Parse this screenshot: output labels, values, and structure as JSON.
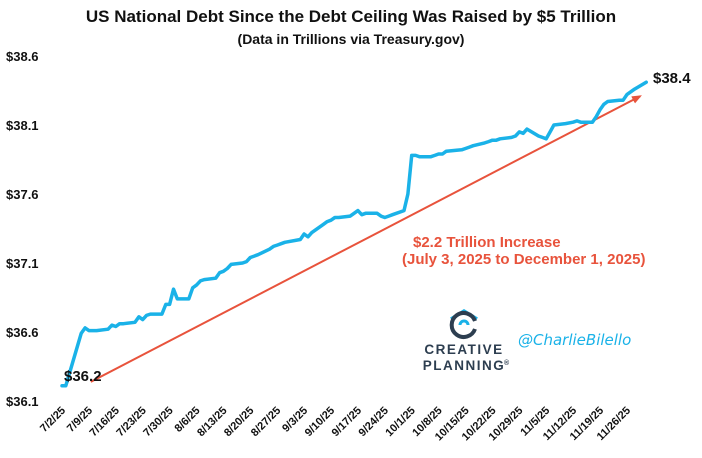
{
  "chart_data": {
    "type": "line",
    "title": "US National Debt Since the Debt Ceiling Was Raised by $5 Trillion",
    "subtitle": "(Data in Trillions via Treasury.gov)",
    "xlabel": "",
    "ylabel": "",
    "ylim": [
      36.1,
      38.6
    ],
    "yticks": [
      "$36.1",
      "$36.6",
      "$37.1",
      "$37.6",
      "$38.1",
      "$38.6"
    ],
    "ytick_values": [
      36.1,
      36.6,
      37.1,
      37.6,
      38.1,
      38.6
    ],
    "xlim": [
      "2025-07-02",
      "2025-12-02"
    ],
    "xticks": [
      "7/2/25",
      "7/9/25",
      "7/16/25",
      "7/23/25",
      "7/30/25",
      "8/6/25",
      "8/13/25",
      "8/20/25",
      "8/27/25",
      "9/3/25",
      "9/10/25",
      "9/17/25",
      "9/24/25",
      "10/1/25",
      "10/8/25",
      "10/15/25",
      "10/22/25",
      "10/29/25",
      "11/5/25",
      "11/12/25",
      "11/19/25",
      "11/26/25"
    ],
    "xtick_dates": [
      "2025-07-02",
      "2025-07-09",
      "2025-07-16",
      "2025-07-23",
      "2025-07-30",
      "2025-08-06",
      "2025-08-13",
      "2025-08-20",
      "2025-08-27",
      "2025-09-03",
      "2025-09-10",
      "2025-09-17",
      "2025-09-24",
      "2025-10-01",
      "2025-10-08",
      "2025-10-15",
      "2025-10-22",
      "2025-10-29",
      "2025-11-05",
      "2025-11-12",
      "2025-11-19",
      "2025-11-26"
    ],
    "grid": false,
    "series": [
      {
        "color": "#1ab2e8",
        "x": [
          "2025-07-02",
          "2025-07-03",
          "2025-07-07",
          "2025-07-08",
          "2025-07-09",
          "2025-07-10",
          "2025-07-11",
          "2025-07-14",
          "2025-07-15",
          "2025-07-16",
          "2025-07-17",
          "2025-07-18",
          "2025-07-21",
          "2025-07-22",
          "2025-07-23",
          "2025-07-24",
          "2025-07-25",
          "2025-07-28",
          "2025-07-29",
          "2025-07-30",
          "2025-07-31",
          "2025-08-01",
          "2025-08-04",
          "2025-08-05",
          "2025-08-06",
          "2025-08-07",
          "2025-08-08",
          "2025-08-11",
          "2025-08-12",
          "2025-08-13",
          "2025-08-14",
          "2025-08-15",
          "2025-08-18",
          "2025-08-19",
          "2025-08-20",
          "2025-08-21",
          "2025-08-22",
          "2025-08-25",
          "2025-08-26",
          "2025-08-27",
          "2025-08-28",
          "2025-08-29",
          "2025-09-02",
          "2025-09-03",
          "2025-09-04",
          "2025-09-05",
          "2025-09-08",
          "2025-09-09",
          "2025-09-10",
          "2025-09-11",
          "2025-09-12",
          "2025-09-15",
          "2025-09-16",
          "2025-09-17",
          "2025-09-18",
          "2025-09-19",
          "2025-09-22",
          "2025-09-23",
          "2025-09-24",
          "2025-09-25",
          "2025-09-26",
          "2025-09-29",
          "2025-09-30",
          "2025-10-01",
          "2025-10-02",
          "2025-10-03",
          "2025-10-06",
          "2025-10-07",
          "2025-10-08",
          "2025-10-09",
          "2025-10-10",
          "2025-10-14",
          "2025-10-15",
          "2025-10-16",
          "2025-10-17",
          "2025-10-20",
          "2025-10-21",
          "2025-10-22",
          "2025-10-23",
          "2025-10-24",
          "2025-10-27",
          "2025-10-28",
          "2025-10-29",
          "2025-10-30",
          "2025-10-31",
          "2025-11-03",
          "2025-11-04",
          "2025-11-05",
          "2025-11-06",
          "2025-11-07",
          "2025-11-10",
          "2025-11-12",
          "2025-11-13",
          "2025-11-14",
          "2025-11-17",
          "2025-11-18",
          "2025-11-19",
          "2025-11-20",
          "2025-11-21",
          "2025-11-24",
          "2025-11-25",
          "2025-11-26",
          "2025-11-28",
          "2025-12-01"
        ],
        "values": [
          36.21,
          36.21,
          36.59,
          36.63,
          36.61,
          36.61,
          36.61,
          36.62,
          36.65,
          36.64,
          36.66,
          36.66,
          36.67,
          36.71,
          36.69,
          36.72,
          36.73,
          36.73,
          36.8,
          36.8,
          36.91,
          36.84,
          36.84,
          36.92,
          36.94,
          36.97,
          36.98,
          36.99,
          37.03,
          37.04,
          37.06,
          37.09,
          37.1,
          37.11,
          37.14,
          37.15,
          37.16,
          37.2,
          37.22,
          37.23,
          37.24,
          37.25,
          37.27,
          37.31,
          37.29,
          37.32,
          37.38,
          37.4,
          37.41,
          37.43,
          37.43,
          37.44,
          37.46,
          37.48,
          37.45,
          37.46,
          37.46,
          37.44,
          37.43,
          37.44,
          37.45,
          37.48,
          37.6,
          37.88,
          37.88,
          37.87,
          37.87,
          37.88,
          37.89,
          37.89,
          37.91,
          37.92,
          37.93,
          37.94,
          37.95,
          37.97,
          37.98,
          37.99,
          37.99,
          38.0,
          38.01,
          38.02,
          38.05,
          38.04,
          38.07,
          38.02,
          38.01,
          38.0,
          38.05,
          38.1,
          38.11,
          38.12,
          38.13,
          38.12,
          38.12,
          38.16,
          38.21,
          38.25,
          38.27,
          38.28,
          38.28,
          38.32,
          38.36,
          38.41
        ]
      }
    ],
    "trend_arrow": {
      "from": {
        "x": "2025-07-03",
        "y": 36.21
      },
      "to": {
        "x": "2025-12-01",
        "y": 38.41
      },
      "color": "#e8533c"
    },
    "start_label": "$36.2",
    "end_label": "$38.4",
    "annotation_line1": "$2.2 Trillion Increase",
    "annotation_line2": "(July 3, 2025 to December 1, 2025)",
    "annotation_color": "#e8533c"
  },
  "branding": {
    "brand_line1": "CREATIVE",
    "brand_line2": "PLANNING",
    "trademark": "®",
    "handle": "@CharlieBilello",
    "handle_color": "#1ab2e8",
    "brand_color": "#2d3e50",
    "logo_icon": "creative-planning-logo-icon"
  }
}
